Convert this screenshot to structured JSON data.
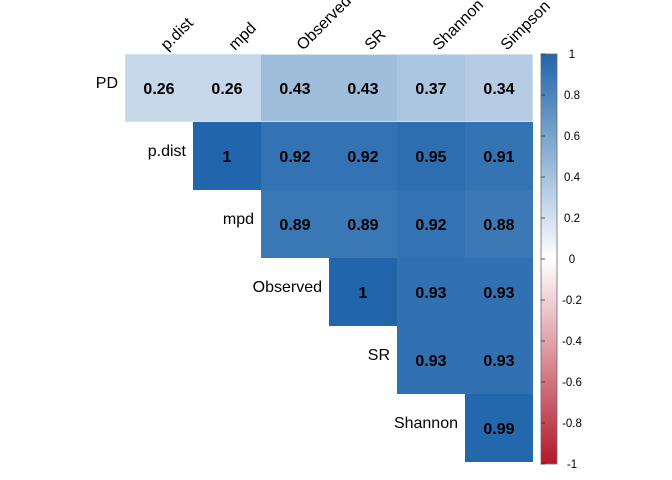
{
  "chart_data": {
    "type": "heatmap",
    "subtype": "upper-triangular correlation matrix",
    "row_labels": [
      "PD",
      "p.dist",
      "mpd",
      "Observed",
      "SR",
      "Shannon"
    ],
    "col_labels": [
      "p.dist",
      "mpd",
      "Observed",
      "SR",
      "Shannon",
      "Simpson"
    ],
    "values": [
      [
        0.26,
        0.26,
        0.43,
        0.43,
        0.37,
        0.34
      ],
      [
        null,
        1,
        0.92,
        0.92,
        0.95,
        0.91
      ],
      [
        null,
        null,
        0.89,
        0.89,
        0.92,
        0.88
      ],
      [
        null,
        null,
        null,
        1,
        0.93,
        0.93
      ],
      [
        null,
        null,
        null,
        null,
        0.93,
        0.93
      ],
      [
        null,
        null,
        null,
        null,
        null,
        0.99
      ]
    ],
    "value_labels": [
      [
        "0.26",
        "0.26",
        "0.43",
        "0.43",
        "0.37",
        "0.34"
      ],
      [
        "",
        "1",
        "0.92",
        "0.92",
        "0.95",
        "0.91"
      ],
      [
        "",
        "",
        "0.89",
        "0.89",
        "0.92",
        "0.88"
      ],
      [
        "",
        "",
        "",
        "1",
        "0.93",
        "0.93"
      ],
      [
        "",
        "",
        "",
        "",
        "0.93",
        "0.93"
      ],
      [
        "",
        "",
        "",
        "",
        "",
        "0.99"
      ]
    ],
    "colorbar": {
      "range": [
        -1,
        1
      ],
      "ticks": [
        "1",
        "0.8",
        "0.6",
        "0.4",
        "0.2",
        "0",
        "-0.2",
        "-0.4",
        "-0.6",
        "-0.8",
        "-1"
      ],
      "colors": {
        "neg": "#b2182b",
        "mid": "#ffffff",
        "pos": "#2166ac"
      }
    },
    "title": "",
    "grid": false
  }
}
